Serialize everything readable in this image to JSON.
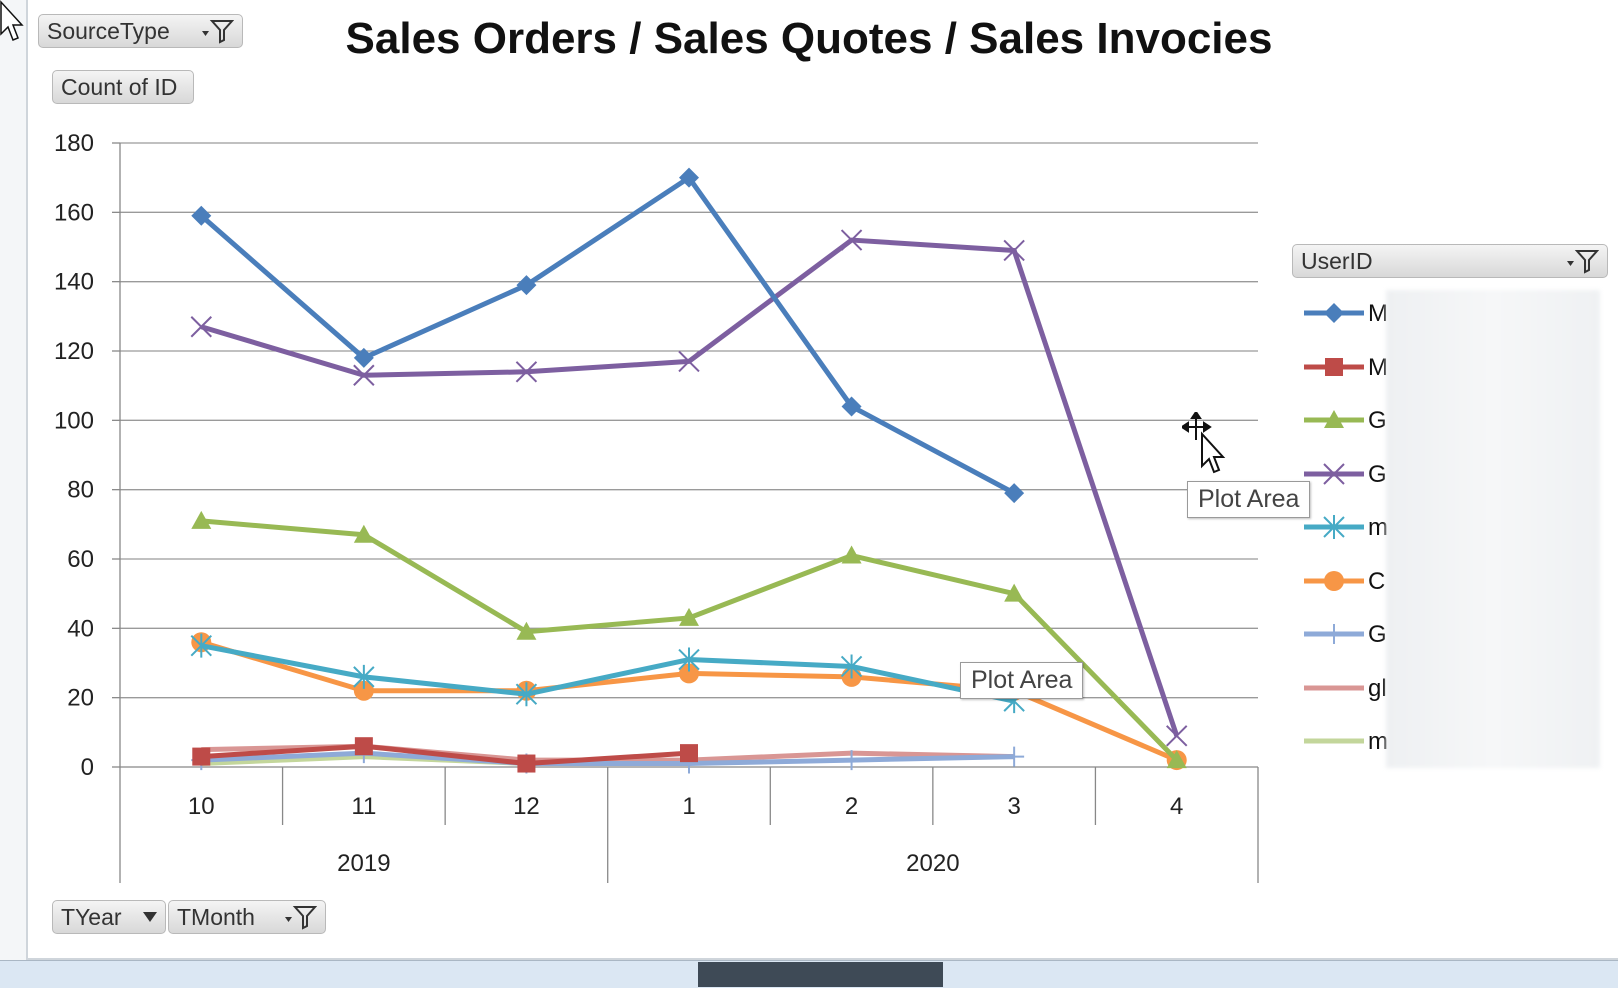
{
  "title": "Sales Orders / Sales Quotes / Sales Invocies",
  "field_buttons": {
    "source_type": "SourceType",
    "count_of_id": "Count of ID",
    "tyear": "TYear",
    "tmonth": "TMonth",
    "user_id": "UserID"
  },
  "tooltips": {
    "plot_area_1": "Plot Area",
    "plot_area_2": "Plot Area"
  },
  "chart_data": {
    "type": "line",
    "title": "Sales Orders / Sales Quotes / Sales Invocies",
    "xlabel": "",
    "ylabel": "",
    "ylim": [
      0,
      180
    ],
    "yticks": [
      0,
      20,
      40,
      60,
      80,
      100,
      120,
      140,
      160,
      180
    ],
    "categories": [
      "10",
      "11",
      "12",
      "1",
      "2",
      "3",
      "4"
    ],
    "category_groups": [
      {
        "label": "2019",
        "span": [
          0,
          2
        ]
      },
      {
        "label": "2020",
        "span": [
          3,
          6
        ]
      }
    ],
    "grid": "horizontal",
    "legend_position": "right",
    "series": [
      {
        "name": "M",
        "color": "#4a7ebb",
        "marker": "diamond",
        "values": [
          159,
          118,
          139,
          170,
          104,
          79,
          null
        ]
      },
      {
        "name": "M",
        "color": "#be4b48",
        "marker": "square",
        "values": [
          3,
          6,
          1,
          4,
          null,
          null,
          null
        ]
      },
      {
        "name": "G",
        "color": "#98b954",
        "marker": "triangle",
        "values": [
          71,
          67,
          39,
          43,
          61,
          50,
          2
        ]
      },
      {
        "name": "G",
        "color": "#7d5fa0",
        "marker": "x",
        "values": [
          127,
          113,
          114,
          117,
          152,
          149,
          9
        ]
      },
      {
        "name": "m",
        "color": "#46aac5",
        "marker": "star",
        "values": [
          35,
          26,
          21,
          31,
          29,
          19,
          null
        ]
      },
      {
        "name": "C",
        "color": "#f79646",
        "marker": "circle",
        "values": [
          36,
          22,
          22,
          27,
          26,
          22,
          2
        ]
      },
      {
        "name": "G",
        "color": "#8eaad8",
        "marker": "plus",
        "values": [
          2,
          4,
          1,
          1,
          2,
          3,
          null
        ]
      },
      {
        "name": "gl",
        "color": "#d99694",
        "marker": "none",
        "values": [
          5,
          6,
          2,
          2,
          4,
          3,
          null
        ]
      },
      {
        "name": "m",
        "color": "#c3d69b",
        "marker": "none",
        "values": [
          1,
          3,
          1,
          1,
          null,
          null,
          null
        ]
      }
    ]
  }
}
